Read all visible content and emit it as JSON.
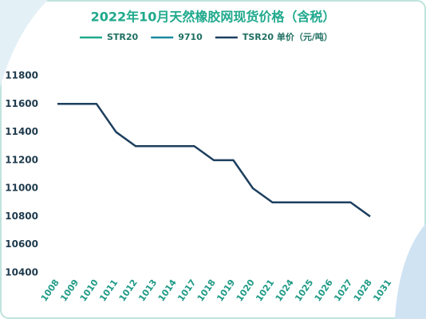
{
  "chart_data": {
    "type": "line",
    "title": "2022年10月天然橡胶网现货价格（含税）",
    "categories": [
      "1008",
      "1009",
      "1010",
      "1011",
      "1012",
      "1013",
      "1014",
      "1017",
      "1018",
      "1019",
      "1020",
      "1021",
      "1024",
      "1025",
      "1026",
      "1027",
      "1028",
      "1031"
    ],
    "series": [
      {
        "name": "STR20",
        "color": "#1fa98c",
        "values": [
          null,
          null,
          null,
          null,
          null,
          null,
          null,
          null,
          null,
          null,
          null,
          null,
          null,
          null,
          null,
          null,
          null,
          null
        ]
      },
      {
        "name": "9710",
        "color": "#1a8aa0",
        "values": [
          null,
          null,
          null,
          null,
          null,
          null,
          null,
          null,
          null,
          null,
          null,
          null,
          null,
          null,
          null,
          null,
          null,
          null
        ]
      },
      {
        "name": "TSR20 单价（元/吨）",
        "color": "#1d3f5e",
        "values": [
          11600,
          11600,
          11600,
          11400,
          11300,
          11300,
          11300,
          11300,
          11200,
          11200,
          11000,
          10900,
          10900,
          10900,
          10900,
          10900,
          10800,
          null
        ]
      }
    ],
    "ylim": [
      10400,
      11800
    ],
    "yticks": [
      10400,
      10600,
      10800,
      11000,
      11200,
      11400,
      11600,
      11800
    ]
  }
}
